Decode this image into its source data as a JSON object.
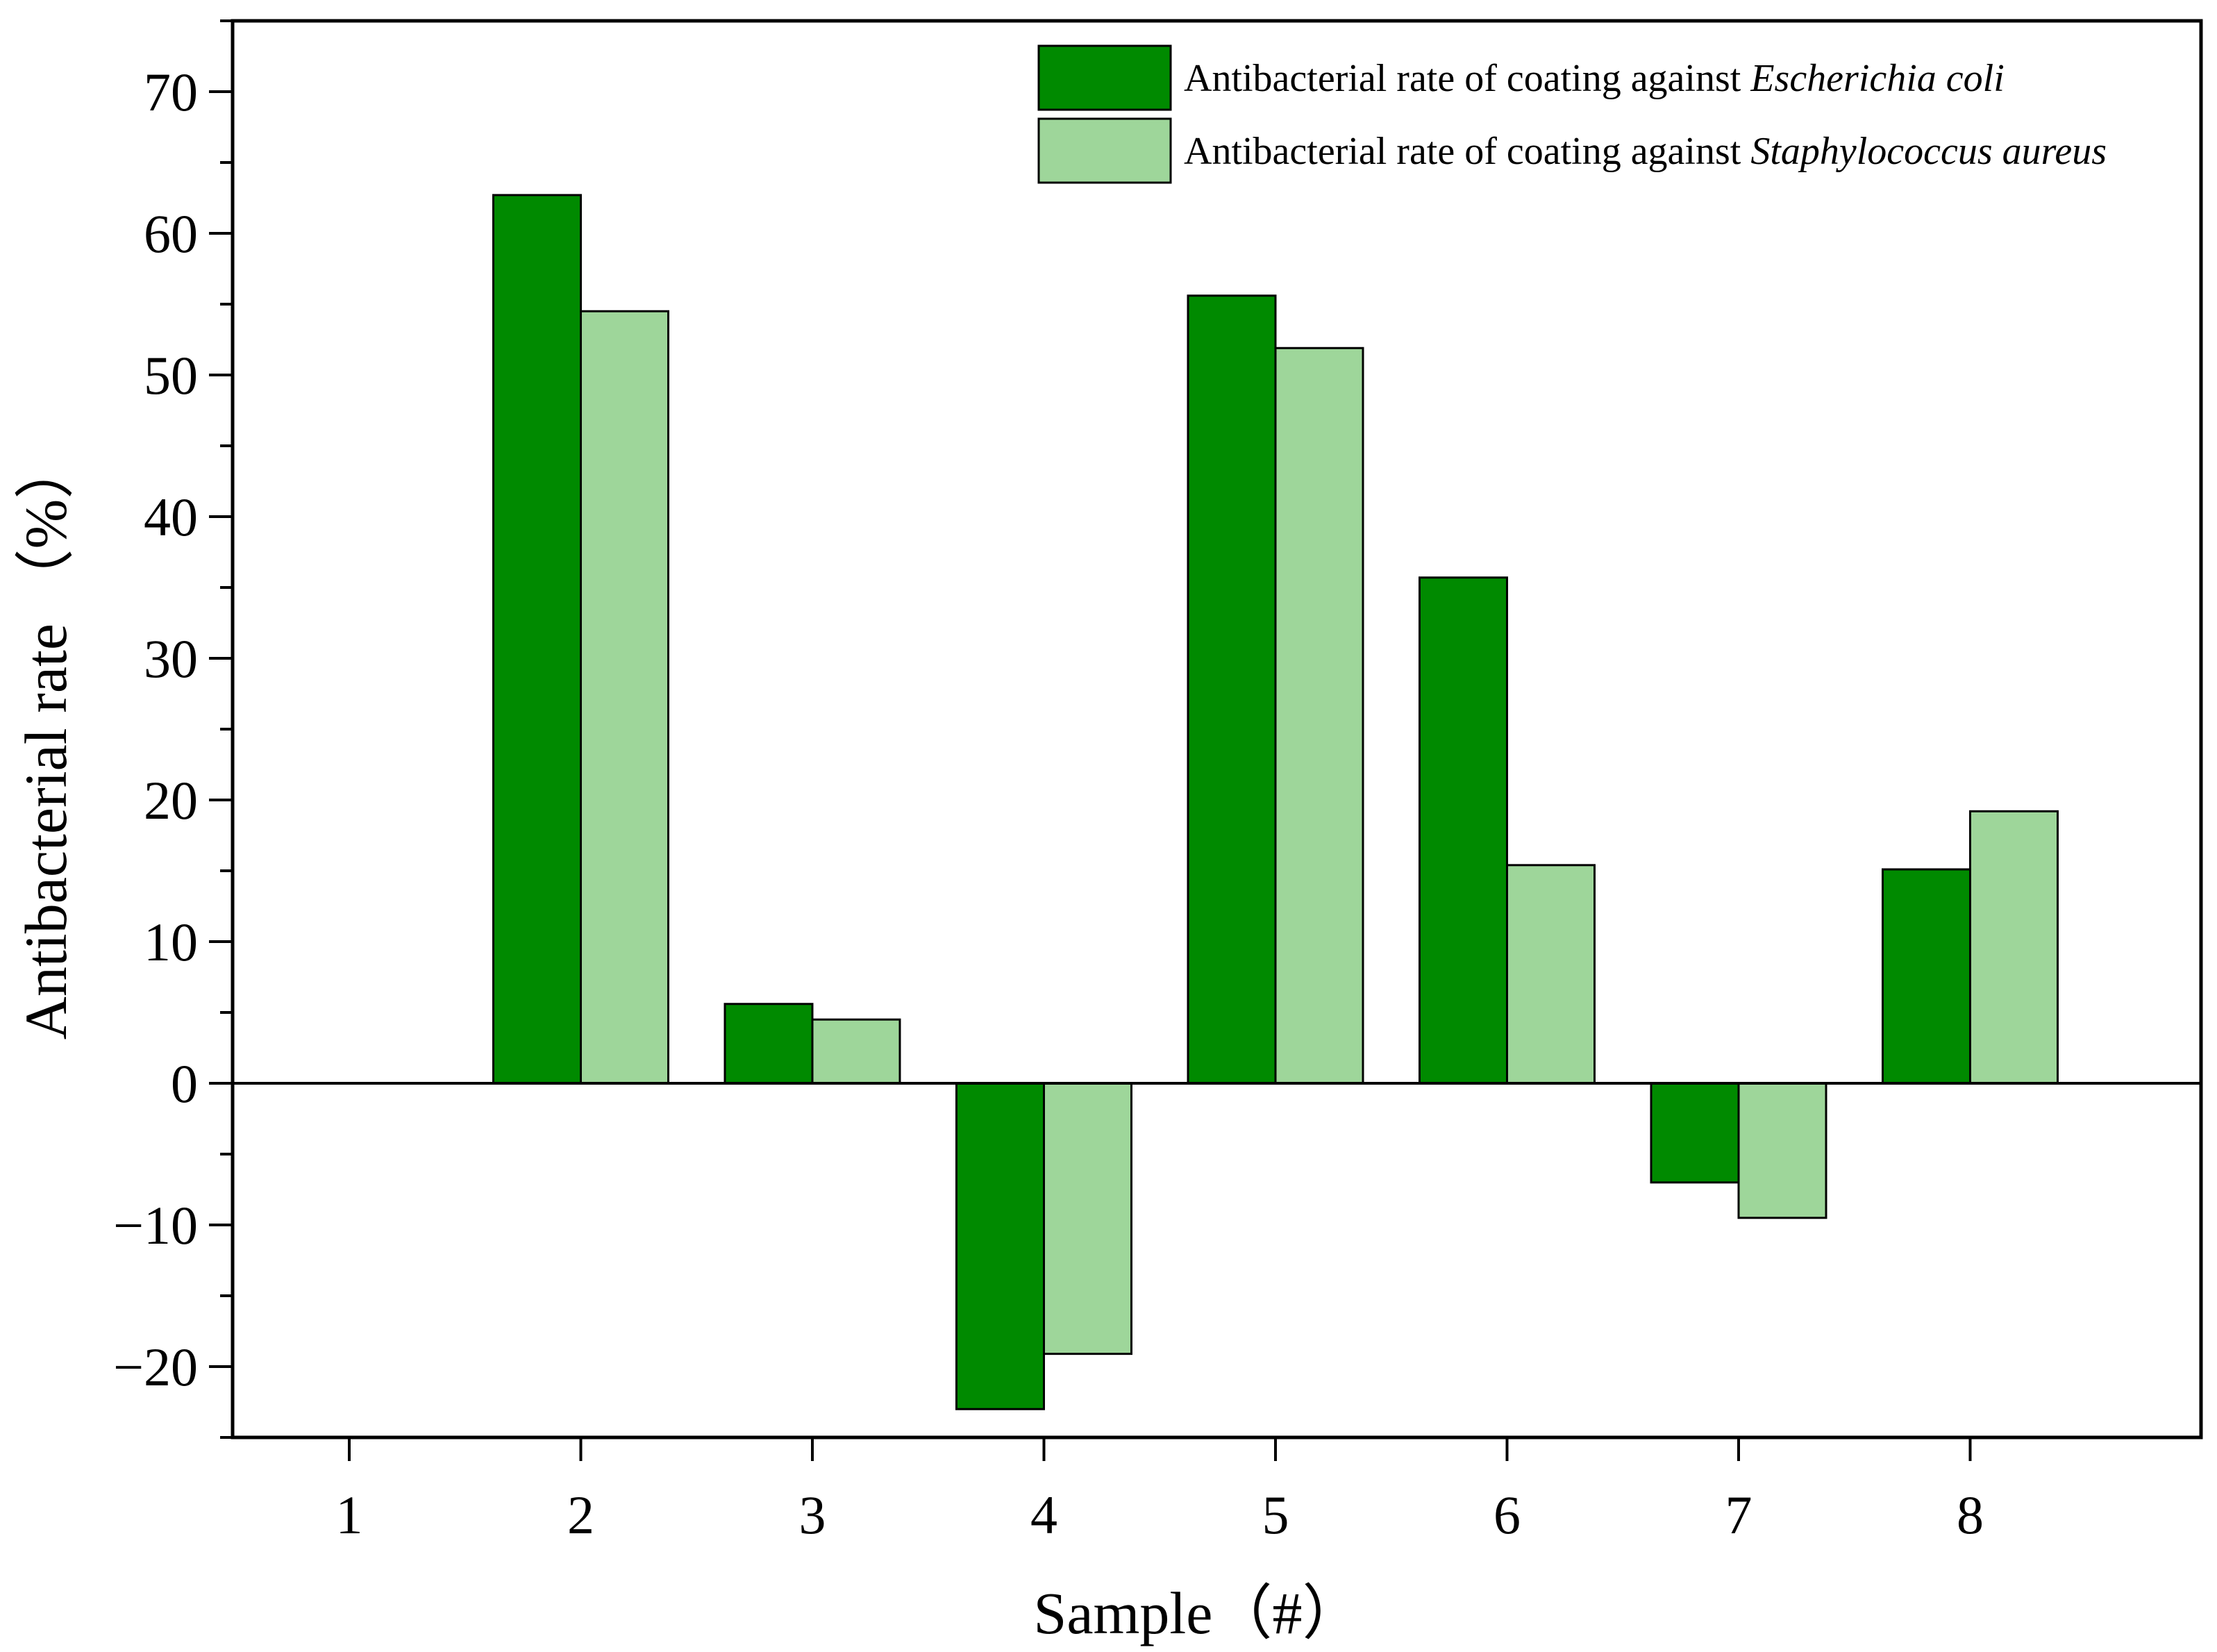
{
  "chart_data": {
    "type": "bar",
    "categories": [
      "1",
      "2",
      "3",
      "4",
      "5",
      "6",
      "7",
      "8"
    ],
    "series": [
      {
        "name": "Antibacterial rate of coating against Escherichia coli",
        "label_prefix": "Antibacterial rate of coating against ",
        "label_italic": "Escherichia coli",
        "color": "#008a00",
        "values": [
          0,
          62.7,
          5.6,
          -23.0,
          55.6,
          35.7,
          -7.0,
          15.1
        ]
      },
      {
        "name": "Antibacterial rate of coating against Staphylococcus aureus",
        "label_prefix": "Antibacterial rate of coating against ",
        "label_italic": "Staphylococcus aureus",
        "color": "#9ed69a",
        "values": [
          0,
          54.5,
          4.5,
          -19.1,
          51.9,
          15.4,
          -9.5,
          19.2
        ]
      }
    ],
    "xlabel": "Sample（#）",
    "ylabel": "Antibacterial rate （%）",
    "ylim": [
      -25,
      75
    ],
    "yticks": [
      -20,
      -10,
      0,
      10,
      20,
      30,
      40,
      50,
      60,
      70
    ],
    "ytick_labels": [
      "−20",
      "−10",
      "0",
      "10",
      "20",
      "30",
      "40",
      "50",
      "60",
      "70"
    ],
    "legend_position": "top-right",
    "grid": false
  }
}
